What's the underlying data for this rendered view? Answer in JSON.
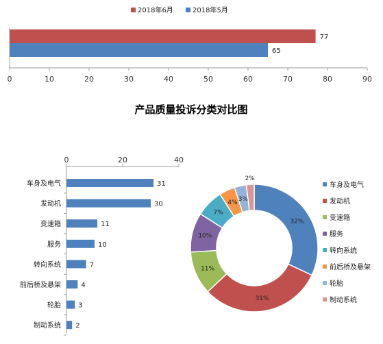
{
  "chart_data": [
    {
      "type": "bar",
      "orientation": "horizontal",
      "legend_position": "top",
      "categories": [
        ""
      ],
      "series": [
        {
          "name": "2018年6月",
          "values": [
            77
          ],
          "color": "#c0504d"
        },
        {
          "name": "2018年5月",
          "values": [
            65
          ],
          "color": "#4f81bd"
        }
      ],
      "xlim": [
        0,
        90
      ],
      "xticks": [
        "0",
        "10",
        "20",
        "30",
        "40",
        "50",
        "60",
        "70",
        "80",
        "90"
      ]
    },
    {
      "type": "bar",
      "orientation": "horizontal",
      "title": "产品质量投诉分类对比图",
      "categories": [
        "车身及电气",
        "发动机",
        "变速箱",
        "服务",
        "转向系统",
        "前后桥及悬架",
        "轮胎",
        "制动系统"
      ],
      "values": [
        31,
        30,
        11,
        10,
        7,
        4,
        3,
        2
      ],
      "color": "#4f81bd",
      "xlim": [
        0,
        40
      ],
      "xticks": [
        "0",
        "20",
        "40"
      ],
      "axis_position": "top"
    },
    {
      "type": "pie",
      "style": "donut",
      "legend_position": "right",
      "categories": [
        "车身及电气",
        "发动机",
        "变速箱",
        "服务",
        "转向系统",
        "前后桥及悬架",
        "轮胎",
        "制动系统"
      ],
      "values": [
        32,
        31,
        11,
        10,
        7,
        4,
        3,
        2
      ],
      "labels": [
        "32%",
        "31%",
        "11%",
        "10%",
        "7%",
        "4%",
        "3%",
        "2%"
      ],
      "colors": [
        "#4f81bd",
        "#c0504d",
        "#9bbb59",
        "#8064a2",
        "#4bacc6",
        "#f79646",
        "#95b3d7",
        "#d99694"
      ]
    }
  ]
}
